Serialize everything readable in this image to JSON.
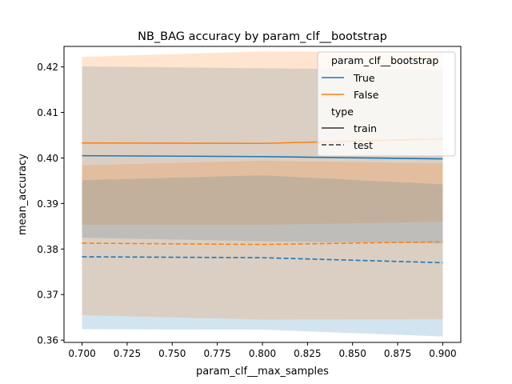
{
  "chart_data": {
    "type": "line",
    "title": "NB_BAG accuracy by param_clf__bootstrap",
    "xlabel": "param_clf__max_samples",
    "ylabel": "mean_accuracy",
    "x": [
      0.7,
      0.8,
      0.9
    ],
    "xlim": [
      0.69,
      0.91
    ],
    "ylim": [
      0.3595,
      0.4245
    ],
    "xticks": [
      "0.700",
      "0.725",
      "0.750",
      "0.775",
      "0.800",
      "0.825",
      "0.850",
      "0.875",
      "0.900"
    ],
    "yticks": [
      "0.36",
      "0.37",
      "0.38",
      "0.39",
      "0.40",
      "0.41",
      "0.42"
    ],
    "grid": false,
    "legend": {
      "placement": "top-right",
      "hue_title": "param_clf__bootstrap",
      "style_title": "type",
      "hue_entries": [
        {
          "label": "True",
          "color": "#1f77b4"
        },
        {
          "label": "False",
          "color": "#ff7f0e"
        }
      ],
      "style_entries": [
        {
          "label": "train",
          "dash": "solid"
        },
        {
          "label": "test",
          "dash": "dashed"
        }
      ]
    },
    "series": [
      {
        "hue": "True",
        "type": "train",
        "color": "#1f77b4",
        "dash": "solid",
        "values": [
          0.4005,
          0.4003,
          0.3998
        ],
        "ci_low": [
          0.3825,
          0.3817,
          0.3812
        ],
        "ci_high": [
          0.4201,
          0.4197,
          0.4193
        ]
      },
      {
        "hue": "False",
        "type": "train",
        "color": "#ff7f0e",
        "dash": "solid",
        "values": [
          0.4033,
          0.4032,
          0.4042
        ],
        "ci_low": [
          0.3853,
          0.3853,
          0.386
        ],
        "ci_high": [
          0.4222,
          0.4234,
          0.4232
        ]
      },
      {
        "hue": "True",
        "type": "test",
        "color": "#1f77b4",
        "dash": "dashed",
        "values": [
          0.3783,
          0.3781,
          0.377
        ],
        "ci_low": [
          0.3624,
          0.3623,
          0.3608
        ],
        "ci_high": [
          0.3951,
          0.3962,
          0.3942
        ]
      },
      {
        "hue": "False",
        "type": "test",
        "color": "#ff7f0e",
        "dash": "dashed",
        "values": [
          0.3813,
          0.381,
          0.3816
        ],
        "ci_low": [
          0.3655,
          0.3645,
          0.3646
        ],
        "ci_high": [
          0.3984,
          0.3994,
          0.3988
        ]
      }
    ]
  }
}
